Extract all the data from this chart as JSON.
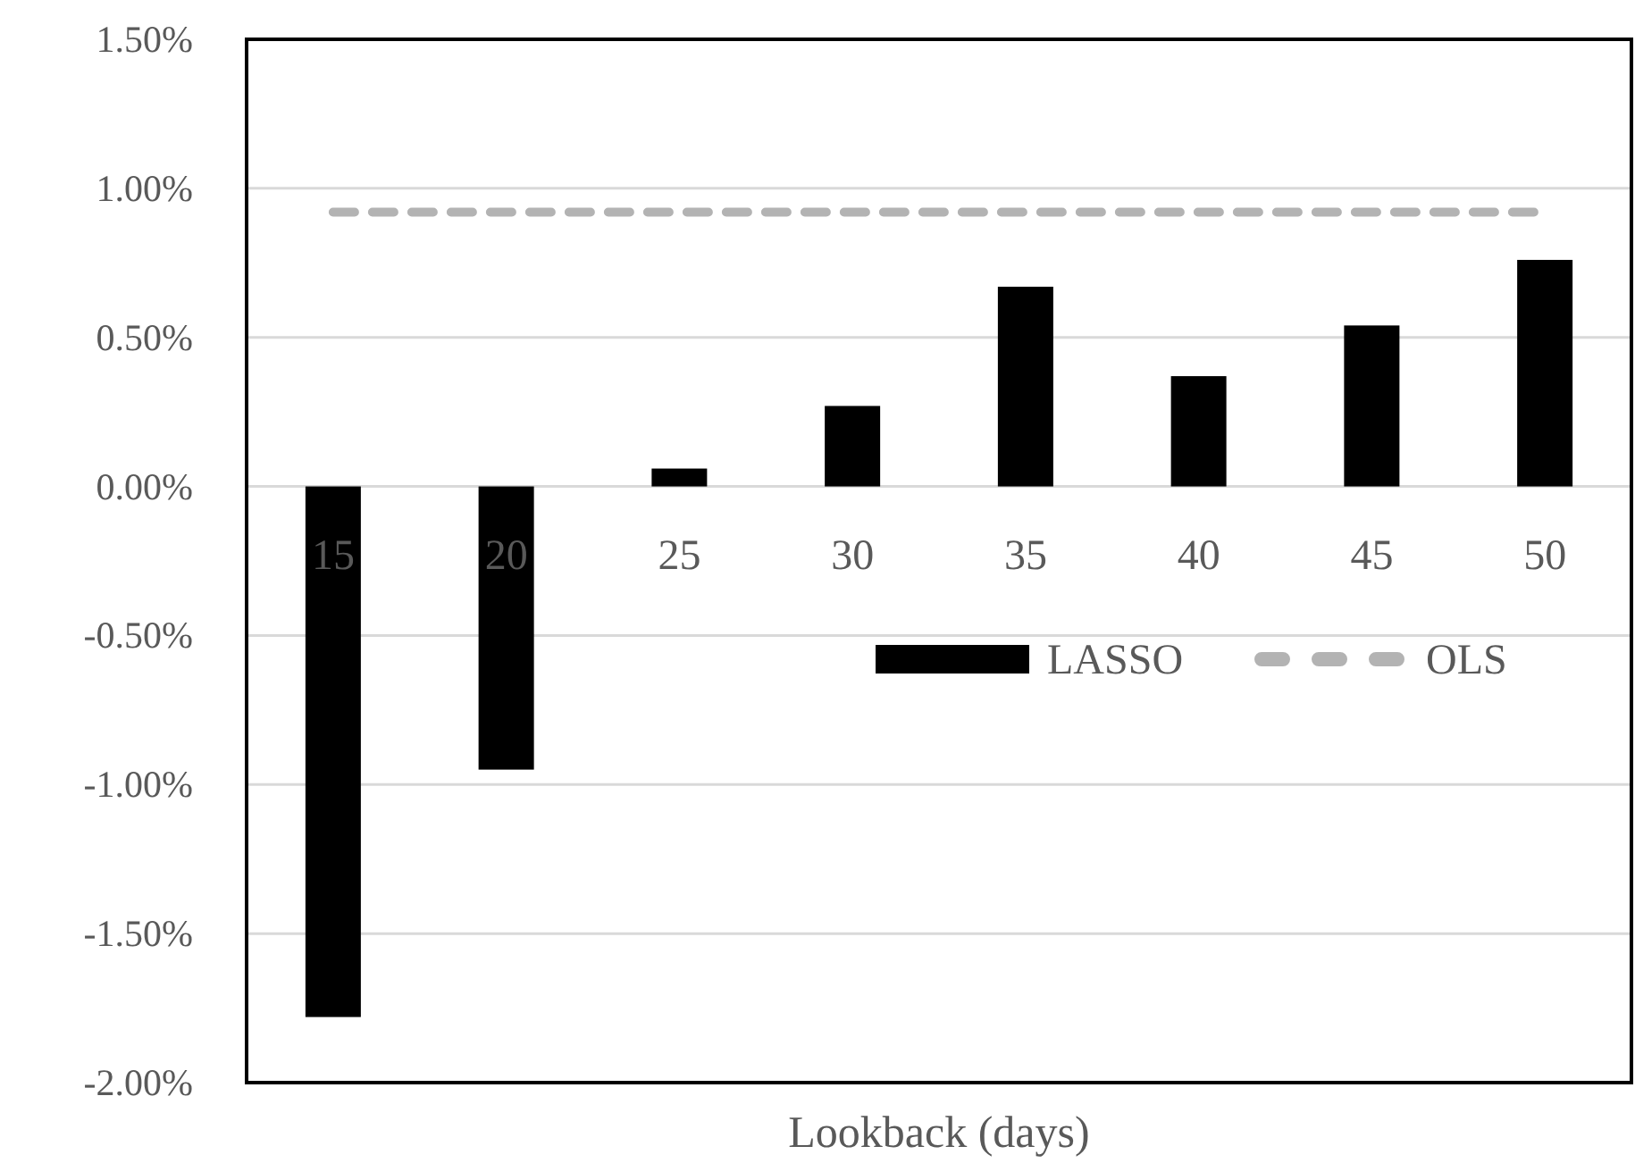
{
  "chart_data": {
    "type": "bar",
    "xlabel": "Lookback (days)",
    "categories": [
      "15",
      "20",
      "25",
      "30",
      "35",
      "40",
      "45",
      "50"
    ],
    "series": [
      {
        "name": "LASSO",
        "color": "#000000",
        "values": [
          -1.78,
          -0.95,
          0.06,
          0.27,
          0.67,
          0.37,
          0.54,
          0.76
        ]
      },
      {
        "name": "OLS",
        "type": "line",
        "color": "#b3b3b3",
        "line_style": "dashed",
        "marker": "none",
        "values": [
          0.92,
          0.92,
          0.92,
          0.92,
          0.92,
          0.92,
          0.92,
          0.92
        ]
      }
    ],
    "ylim": [
      -2,
      1.5
    ],
    "yticks": [
      {
        "value": -2,
        "label": "-2.00%"
      },
      {
        "value": -1.5,
        "label": "-1.50%"
      },
      {
        "value": -1,
        "label": "-1.00%"
      },
      {
        "value": -0.5,
        "label": "-0.50%"
      },
      {
        "value": 0,
        "label": "0.00%"
      },
      {
        "value": 0.5,
        "label": "0.50%"
      },
      {
        "value": 1,
        "label": "1.00%"
      },
      {
        "value": 1.5,
        "label": "1.50%"
      }
    ],
    "grid": "y",
    "legend": "right"
  }
}
